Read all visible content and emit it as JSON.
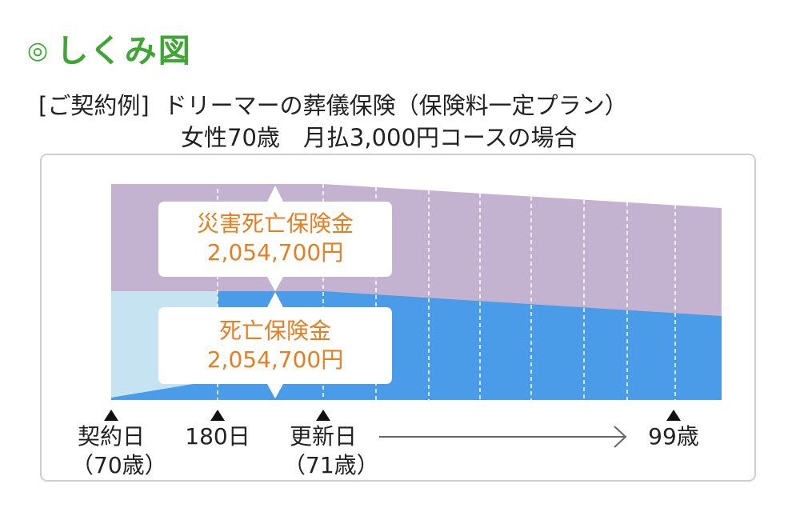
{
  "heading": {
    "mark": "◎",
    "title": "しくみ図"
  },
  "example": {
    "tag": "[ご契約例]",
    "plan": "ドリーマーの葬儀保険（保険料一定プラン）",
    "condition": "女性70歳　月払3,000円コースの場合"
  },
  "benefits": {
    "accident": {
      "label": "災害死亡保険金",
      "amount": "2,054,700円"
    },
    "death": {
      "label": "死亡保険金",
      "amount": "2,054,700円"
    }
  },
  "timeline": {
    "contract": {
      "line1": "契約日",
      "line2": "（70歳）"
    },
    "day180": {
      "line1": "180日"
    },
    "renewal": {
      "line1": "更新日",
      "line2": "（71歳）"
    },
    "age99": {
      "line1": "99歳"
    }
  },
  "colors": {
    "accident_band": "#c3b3d0",
    "death_band": "#4a9be8",
    "waiting_band": "#c5e3f1",
    "label_text": "#e67e22",
    "heading": "#3fa535",
    "arrow": "#666666"
  }
}
